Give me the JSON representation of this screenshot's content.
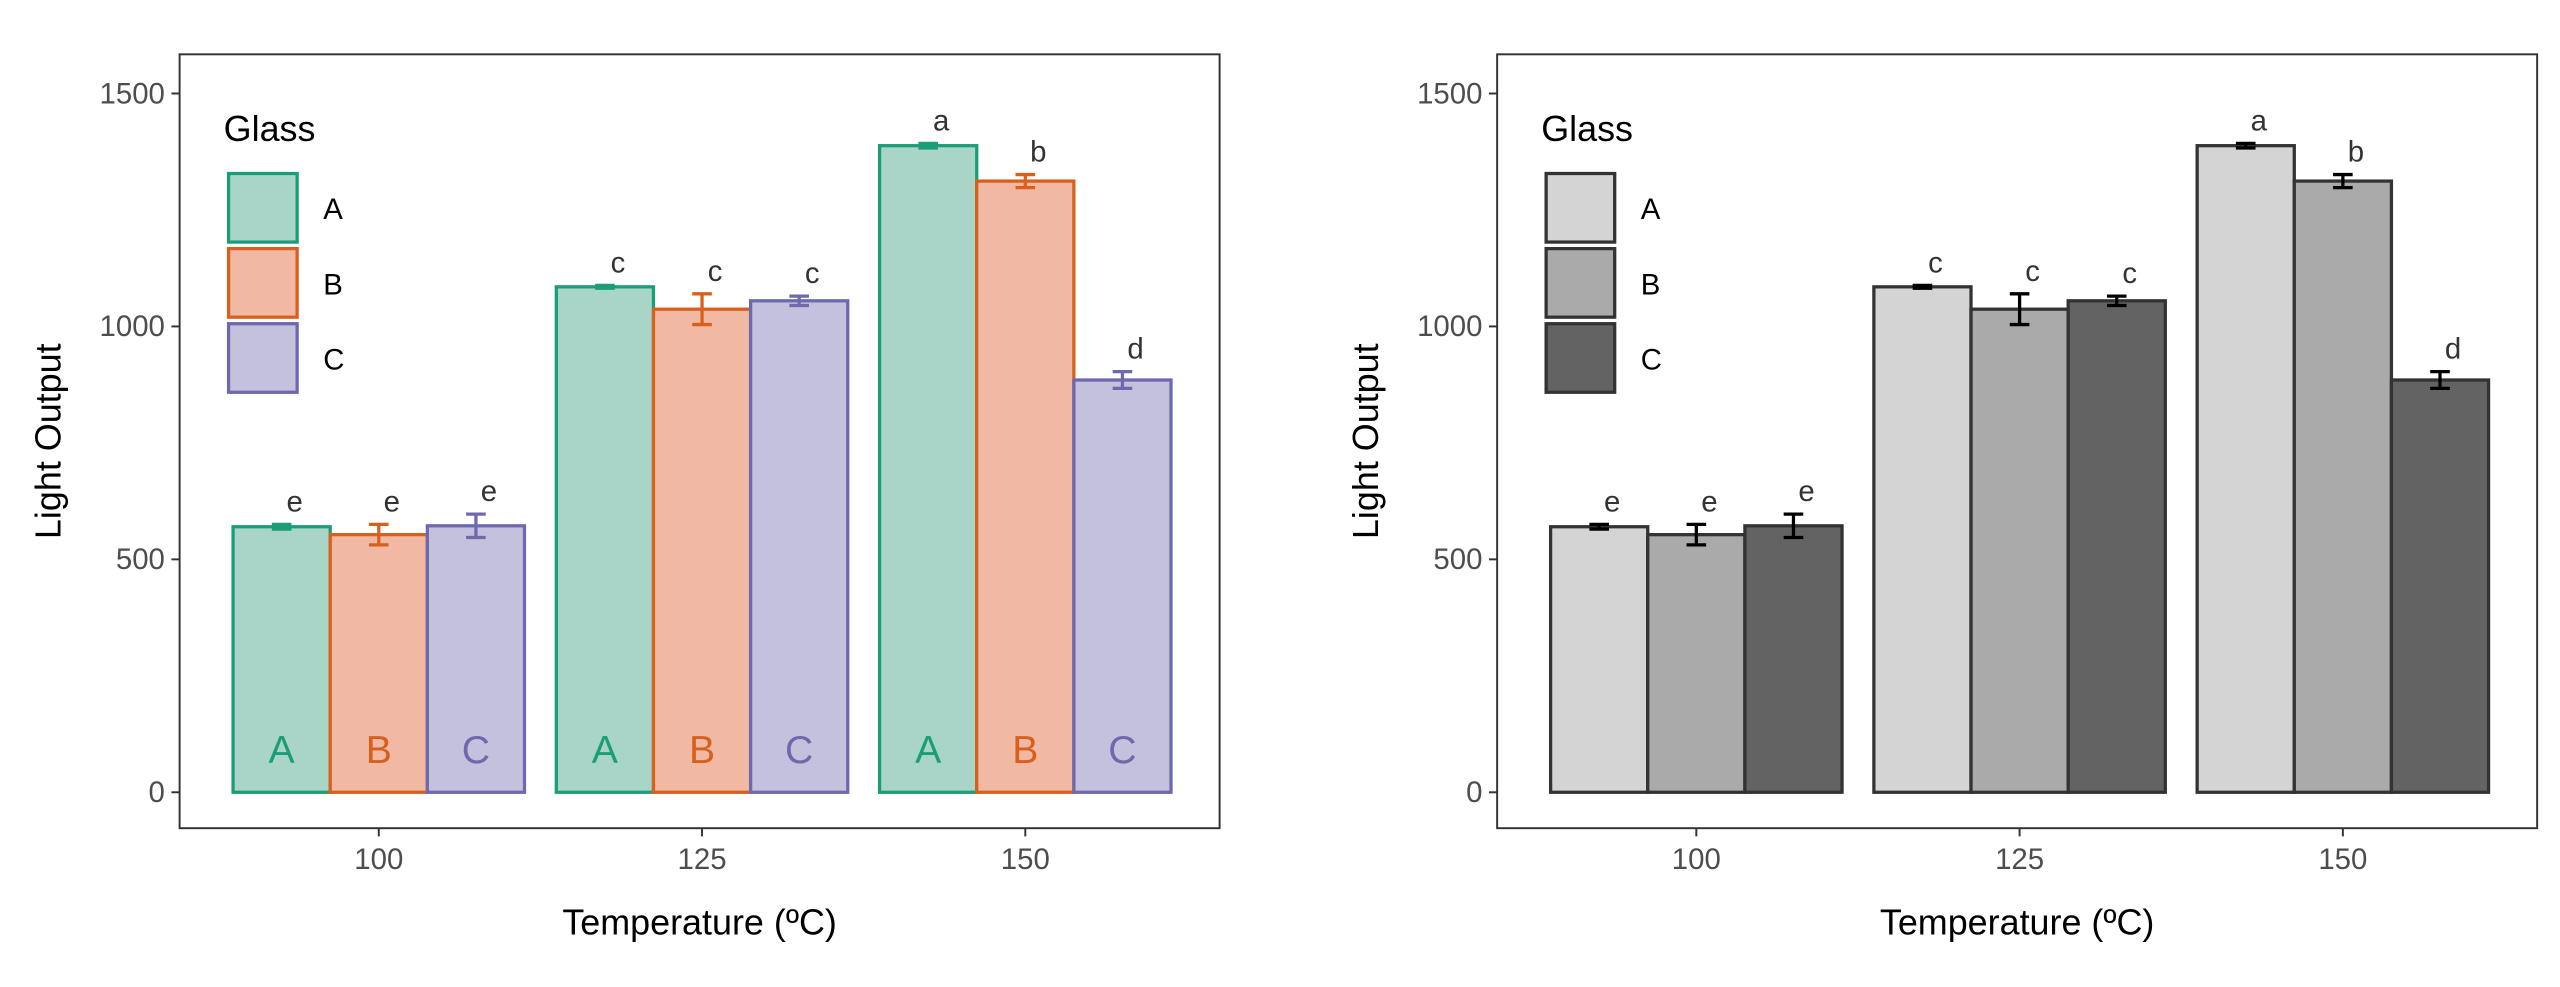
{
  "chart_data": [
    {
      "type": "bar",
      "title": "",
      "xlabel": "Temperature (ºC)",
      "ylabel": "Light Output",
      "categories": [
        "100",
        "125",
        "150"
      ],
      "yticks": [
        "0",
        "500",
        "1000",
        "1500"
      ],
      "ylim": [
        0,
        1550
      ],
      "grid": false,
      "legend": {
        "title": "Glass",
        "placement": "top-left"
      },
      "series": [
        {
          "name": "A",
          "values": [
            570,
            1085,
            1388
          ],
          "errors": [
            5,
            3,
            5
          ],
          "letters": [
            "e",
            "c",
            "a"
          ],
          "bar_label": "A",
          "stroke": "#1b9e77",
          "fill": "#a8d5c7"
        },
        {
          "name": "B",
          "values": [
            553,
            1037,
            1312
          ],
          "errors": [
            22,
            33,
            14
          ],
          "letters": [
            "e",
            "c",
            "b"
          ],
          "bar_label": "B",
          "stroke": "#d95f1d",
          "fill": "#f1b9a3"
        },
        {
          "name": "C",
          "values": [
            572,
            1055,
            885
          ],
          "errors": [
            25,
            10,
            18
          ],
          "letters": [
            "e",
            "c",
            "d"
          ],
          "bar_label": "C",
          "stroke": "#6e69ae",
          "fill": "#c3c1dc"
        }
      ]
    },
    {
      "type": "bar",
      "title": "",
      "xlabel": "Temperature (ºC)",
      "ylabel": "Light Output",
      "categories": [
        "100",
        "125",
        "150"
      ],
      "yticks": [
        "0",
        "500",
        "1000",
        "1500"
      ],
      "ylim": [
        0,
        1550
      ],
      "grid": false,
      "legend": {
        "title": "Glass",
        "placement": "top-left"
      },
      "series": [
        {
          "name": "A",
          "values": [
            570,
            1085,
            1388
          ],
          "errors": [
            5,
            3,
            5
          ],
          "letters": [
            "e",
            "c",
            "a"
          ],
          "stroke": "#333333",
          "fill": "#d4d4d4",
          "error_color": "#000000"
        },
        {
          "name": "B",
          "values": [
            553,
            1037,
            1312
          ],
          "errors": [
            22,
            33,
            14
          ],
          "letters": [
            "e",
            "c",
            "b"
          ],
          "stroke": "#333333",
          "fill": "#aaaaaa",
          "error_color": "#000000"
        },
        {
          "name": "C",
          "values": [
            572,
            1055,
            885
          ],
          "errors": [
            25,
            10,
            18
          ],
          "letters": [
            "e",
            "c",
            "d"
          ],
          "stroke": "#333333",
          "fill": "#636363",
          "error_color": "#000000"
        }
      ]
    }
  ]
}
